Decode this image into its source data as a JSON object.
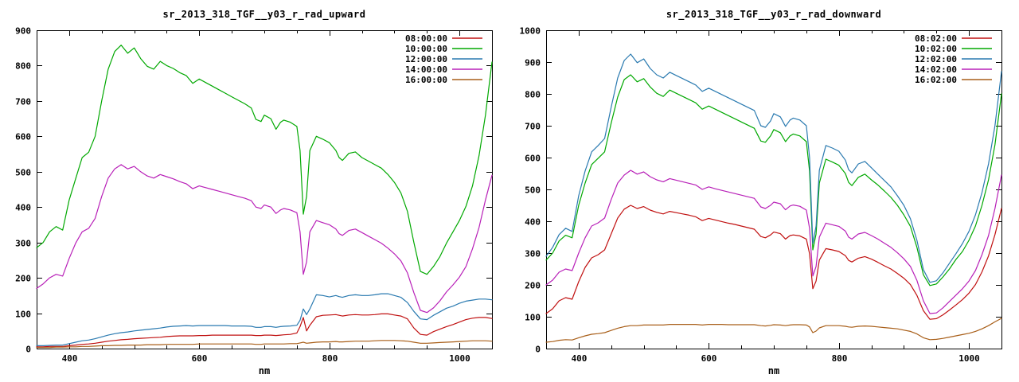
{
  "colors": {
    "background": "#ffffff",
    "frame": "#000000",
    "text": "#000000"
  },
  "chart_data": [
    {
      "type": "line",
      "title": "sr_2013_318_TGF__y03_r_rad_upward",
      "xlabel": "nm",
      "xlim": [
        350,
        1050
      ],
      "ylim": [
        0,
        900
      ],
      "ytick_step": 100,
      "xticks": [
        400,
        600,
        800,
        1000
      ],
      "legend_position": "top-right",
      "grid": false,
      "x": [
        350,
        360,
        370,
        380,
        390,
        400,
        410,
        420,
        430,
        440,
        450,
        460,
        470,
        480,
        490,
        500,
        510,
        520,
        530,
        540,
        550,
        560,
        570,
        580,
        590,
        600,
        610,
        620,
        630,
        640,
        650,
        660,
        670,
        680,
        687,
        695,
        700,
        710,
        718,
        725,
        730,
        740,
        750,
        755,
        760,
        765,
        770,
        780,
        790,
        800,
        810,
        815,
        820,
        830,
        840,
        850,
        860,
        870,
        880,
        890,
        900,
        910,
        920,
        930,
        940,
        950,
        960,
        970,
        980,
        990,
        1000,
        1010,
        1020,
        1030,
        1040,
        1050
      ],
      "series": [
        {
          "name": "08:00:00",
          "color": "#c01010",
          "values": [
            5,
            5,
            6,
            6,
            6,
            8,
            10,
            12,
            13,
            15,
            18,
            21,
            23,
            25,
            26,
            28,
            29,
            30,
            31,
            32,
            34,
            35,
            36,
            36,
            36,
            37,
            37,
            38,
            38,
            38,
            38,
            38,
            38,
            38,
            37,
            37,
            38,
            38,
            37,
            38,
            39,
            40,
            44,
            62,
            88,
            50,
            66,
            90,
            94,
            95,
            96,
            94,
            92,
            95,
            96,
            95,
            95,
            96,
            98,
            98,
            95,
            92,
            84,
            58,
            40,
            38,
            48,
            55,
            62,
            68,
            75,
            82,
            86,
            88,
            88,
            85
          ]
        },
        {
          "name": "10:00:00",
          "color": "#00a800",
          "values": [
            285,
            300,
            330,
            345,
            335,
            420,
            480,
            540,
            555,
            600,
            700,
            790,
            840,
            858,
            835,
            850,
            820,
            798,
            790,
            812,
            800,
            792,
            780,
            772,
            750,
            762,
            752,
            742,
            732,
            722,
            712,
            702,
            692,
            680,
            648,
            642,
            660,
            650,
            620,
            640,
            646,
            640,
            628,
            560,
            380,
            430,
            560,
            600,
            592,
            582,
            560,
            540,
            532,
            552,
            556,
            540,
            530,
            520,
            510,
            492,
            470,
            440,
            388,
            300,
            218,
            210,
            232,
            260,
            298,
            330,
            362,
            402,
            460,
            545,
            660,
            810
          ]
        },
        {
          "name": "12:00:00",
          "color": "#2a7ab0",
          "values": [
            8,
            8,
            9,
            10,
            10,
            14,
            18,
            22,
            24,
            28,
            33,
            38,
            42,
            45,
            47,
            50,
            52,
            54,
            56,
            58,
            61,
            63,
            64,
            65,
            64,
            65,
            65,
            65,
            65,
            65,
            64,
            64,
            64,
            63,
            60,
            60,
            62,
            62,
            60,
            62,
            63,
            64,
            66,
            80,
            112,
            96,
            112,
            152,
            150,
            146,
            150,
            147,
            145,
            150,
            152,
            150,
            150,
            152,
            155,
            155,
            150,
            145,
            130,
            105,
            84,
            82,
            94,
            104,
            114,
            120,
            128,
            134,
            137,
            140,
            140,
            138
          ]
        },
        {
          "name": "14:00:00",
          "color": "#b820b8",
          "values": [
            170,
            183,
            200,
            210,
            205,
            255,
            298,
            330,
            340,
            368,
            430,
            482,
            508,
            520,
            508,
            515,
            500,
            488,
            482,
            492,
            486,
            480,
            472,
            466,
            452,
            460,
            455,
            450,
            445,
            440,
            435,
            430,
            425,
            418,
            400,
            396,
            406,
            400,
            382,
            392,
            396,
            392,
            384,
            330,
            210,
            245,
            330,
            362,
            356,
            350,
            338,
            325,
            320,
            334,
            338,
            328,
            318,
            308,
            298,
            284,
            268,
            248,
            214,
            158,
            108,
            102,
            115,
            135,
            160,
            180,
            202,
            232,
            282,
            342,
            420,
            490
          ]
        },
        {
          "name": "16:00:00",
          "color": "#a85e18",
          "values": [
            3,
            3,
            3,
            4,
            4,
            5,
            5,
            6,
            6,
            7,
            8,
            8,
            9,
            9,
            10,
            10,
            10,
            11,
            11,
            11,
            12,
            12,
            12,
            12,
            12,
            13,
            13,
            13,
            13,
            13,
            13,
            13,
            13,
            13,
            12,
            12,
            13,
            13,
            13,
            13,
            13,
            14,
            14,
            16,
            18,
            15,
            16,
            18,
            19,
            19,
            20,
            19,
            19,
            20,
            21,
            21,
            21,
            22,
            23,
            23,
            23,
            22,
            21,
            18,
            15,
            15,
            16,
            17,
            18,
            19,
            20,
            21,
            22,
            22,
            22,
            21
          ]
        }
      ]
    },
    {
      "type": "line",
      "title": "sr_2013_318_TGF__y03_r_rad_downward",
      "xlabel": "nm",
      "xlim": [
        350,
        1050
      ],
      "ylim": [
        0,
        1000
      ],
      "ytick_step": 100,
      "xticks": [
        400,
        600,
        800,
        1000
      ],
      "legend_position": "top-right",
      "grid": false,
      "x": [
        350,
        360,
        370,
        380,
        390,
        400,
        410,
        420,
        430,
        440,
        450,
        460,
        470,
        480,
        490,
        500,
        510,
        520,
        530,
        540,
        550,
        560,
        570,
        580,
        590,
        600,
        610,
        620,
        630,
        640,
        650,
        660,
        670,
        680,
        687,
        695,
        700,
        710,
        718,
        725,
        730,
        740,
        750,
        755,
        760,
        765,
        770,
        780,
        790,
        800,
        810,
        815,
        820,
        830,
        840,
        850,
        860,
        870,
        880,
        890,
        900,
        910,
        920,
        930,
        940,
        950,
        960,
        970,
        980,
        990,
        1000,
        1010,
        1020,
        1030,
        1040,
        1050
      ],
      "series": [
        {
          "name": "08:02:00",
          "color": "#c01010",
          "values": [
            110,
            125,
            150,
            160,
            155,
            210,
            255,
            285,
            295,
            310,
            360,
            410,
            438,
            450,
            440,
            446,
            435,
            428,
            423,
            431,
            427,
            423,
            419,
            414,
            402,
            409,
            404,
            399,
            394,
            390,
            385,
            380,
            375,
            352,
            348,
            357,
            366,
            361,
            344,
            355,
            357,
            354,
            344,
            298,
            188,
            212,
            278,
            314,
            310,
            305,
            292,
            277,
            272,
            284,
            289,
            281,
            271,
            260,
            250,
            236,
            221,
            201,
            167,
            119,
            92,
            94,
            106,
            121,
            137,
            154,
            174,
            201,
            241,
            291,
            358,
            440
          ]
        },
        {
          "name": "10:02:00",
          "color": "#00a800",
          "values": [
            278,
            300,
            338,
            356,
            348,
            450,
            520,
            578,
            598,
            618,
            708,
            790,
            845,
            860,
            838,
            848,
            822,
            802,
            792,
            812,
            802,
            792,
            782,
            772,
            752,
            762,
            752,
            742,
            732,
            722,
            712,
            702,
            692,
            652,
            648,
            668,
            688,
            678,
            650,
            668,
            674,
            668,
            650,
            558,
            310,
            360,
            520,
            595,
            586,
            576,
            550,
            522,
            512,
            538,
            548,
            530,
            514,
            495,
            475,
            450,
            420,
            384,
            318,
            232,
            198,
            203,
            225,
            250,
            280,
            305,
            340,
            385,
            450,
            530,
            640,
            800
          ]
        },
        {
          "name": "12:02:00",
          "color": "#2a7ab0",
          "values": [
            290,
            318,
            358,
            378,
            368,
            480,
            558,
            618,
            638,
            660,
            758,
            850,
            905,
            925,
            898,
            910,
            880,
            860,
            850,
            868,
            858,
            848,
            838,
            828,
            808,
            818,
            808,
            798,
            788,
            778,
            768,
            758,
            748,
            700,
            695,
            715,
            738,
            728,
            698,
            718,
            724,
            718,
            700,
            600,
            330,
            385,
            560,
            638,
            630,
            620,
            592,
            562,
            552,
            580,
            588,
            568,
            548,
            528,
            508,
            480,
            450,
            408,
            340,
            248,
            208,
            213,
            238,
            268,
            298,
            330,
            368,
            420,
            490,
            580,
            700,
            870
          ]
        },
        {
          "name": "14:02:00",
          "color": "#b820b8",
          "values": [
            200,
            215,
            240,
            250,
            245,
            300,
            348,
            385,
            395,
            410,
            468,
            520,
            545,
            560,
            548,
            555,
            540,
            530,
            524,
            534,
            529,
            524,
            519,
            514,
            500,
            508,
            502,
            497,
            492,
            487,
            482,
            477,
            472,
            445,
            440,
            450,
            460,
            455,
            436,
            448,
            451,
            447,
            435,
            378,
            228,
            258,
            350,
            394,
            389,
            384,
            369,
            350,
            344,
            360,
            365,
            355,
            344,
            331,
            318,
            301,
            282,
            258,
            214,
            150,
            110,
            112,
            128,
            148,
            168,
            188,
            212,
            245,
            295,
            355,
            440,
            545
          ]
        },
        {
          "name": "16:02:00",
          "color": "#a85e18",
          "values": [
            20,
            22,
            26,
            28,
            27,
            34,
            40,
            45,
            47,
            50,
            57,
            64,
            69,
            72,
            72,
            74,
            74,
            74,
            74,
            76,
            76,
            76,
            76,
            76,
            74,
            76,
            76,
            76,
            75,
            75,
            75,
            75,
            75,
            72,
            71,
            73,
            75,
            74,
            72,
            74,
            75,
            75,
            74,
            68,
            50,
            55,
            65,
            72,
            72,
            72,
            70,
            68,
            67,
            70,
            71,
            70,
            68,
            66,
            64,
            62,
            58,
            54,
            46,
            34,
            28,
            29,
            32,
            36,
            40,
            44,
            48,
            54,
            62,
            72,
            84,
            95
          ]
        }
      ]
    }
  ]
}
